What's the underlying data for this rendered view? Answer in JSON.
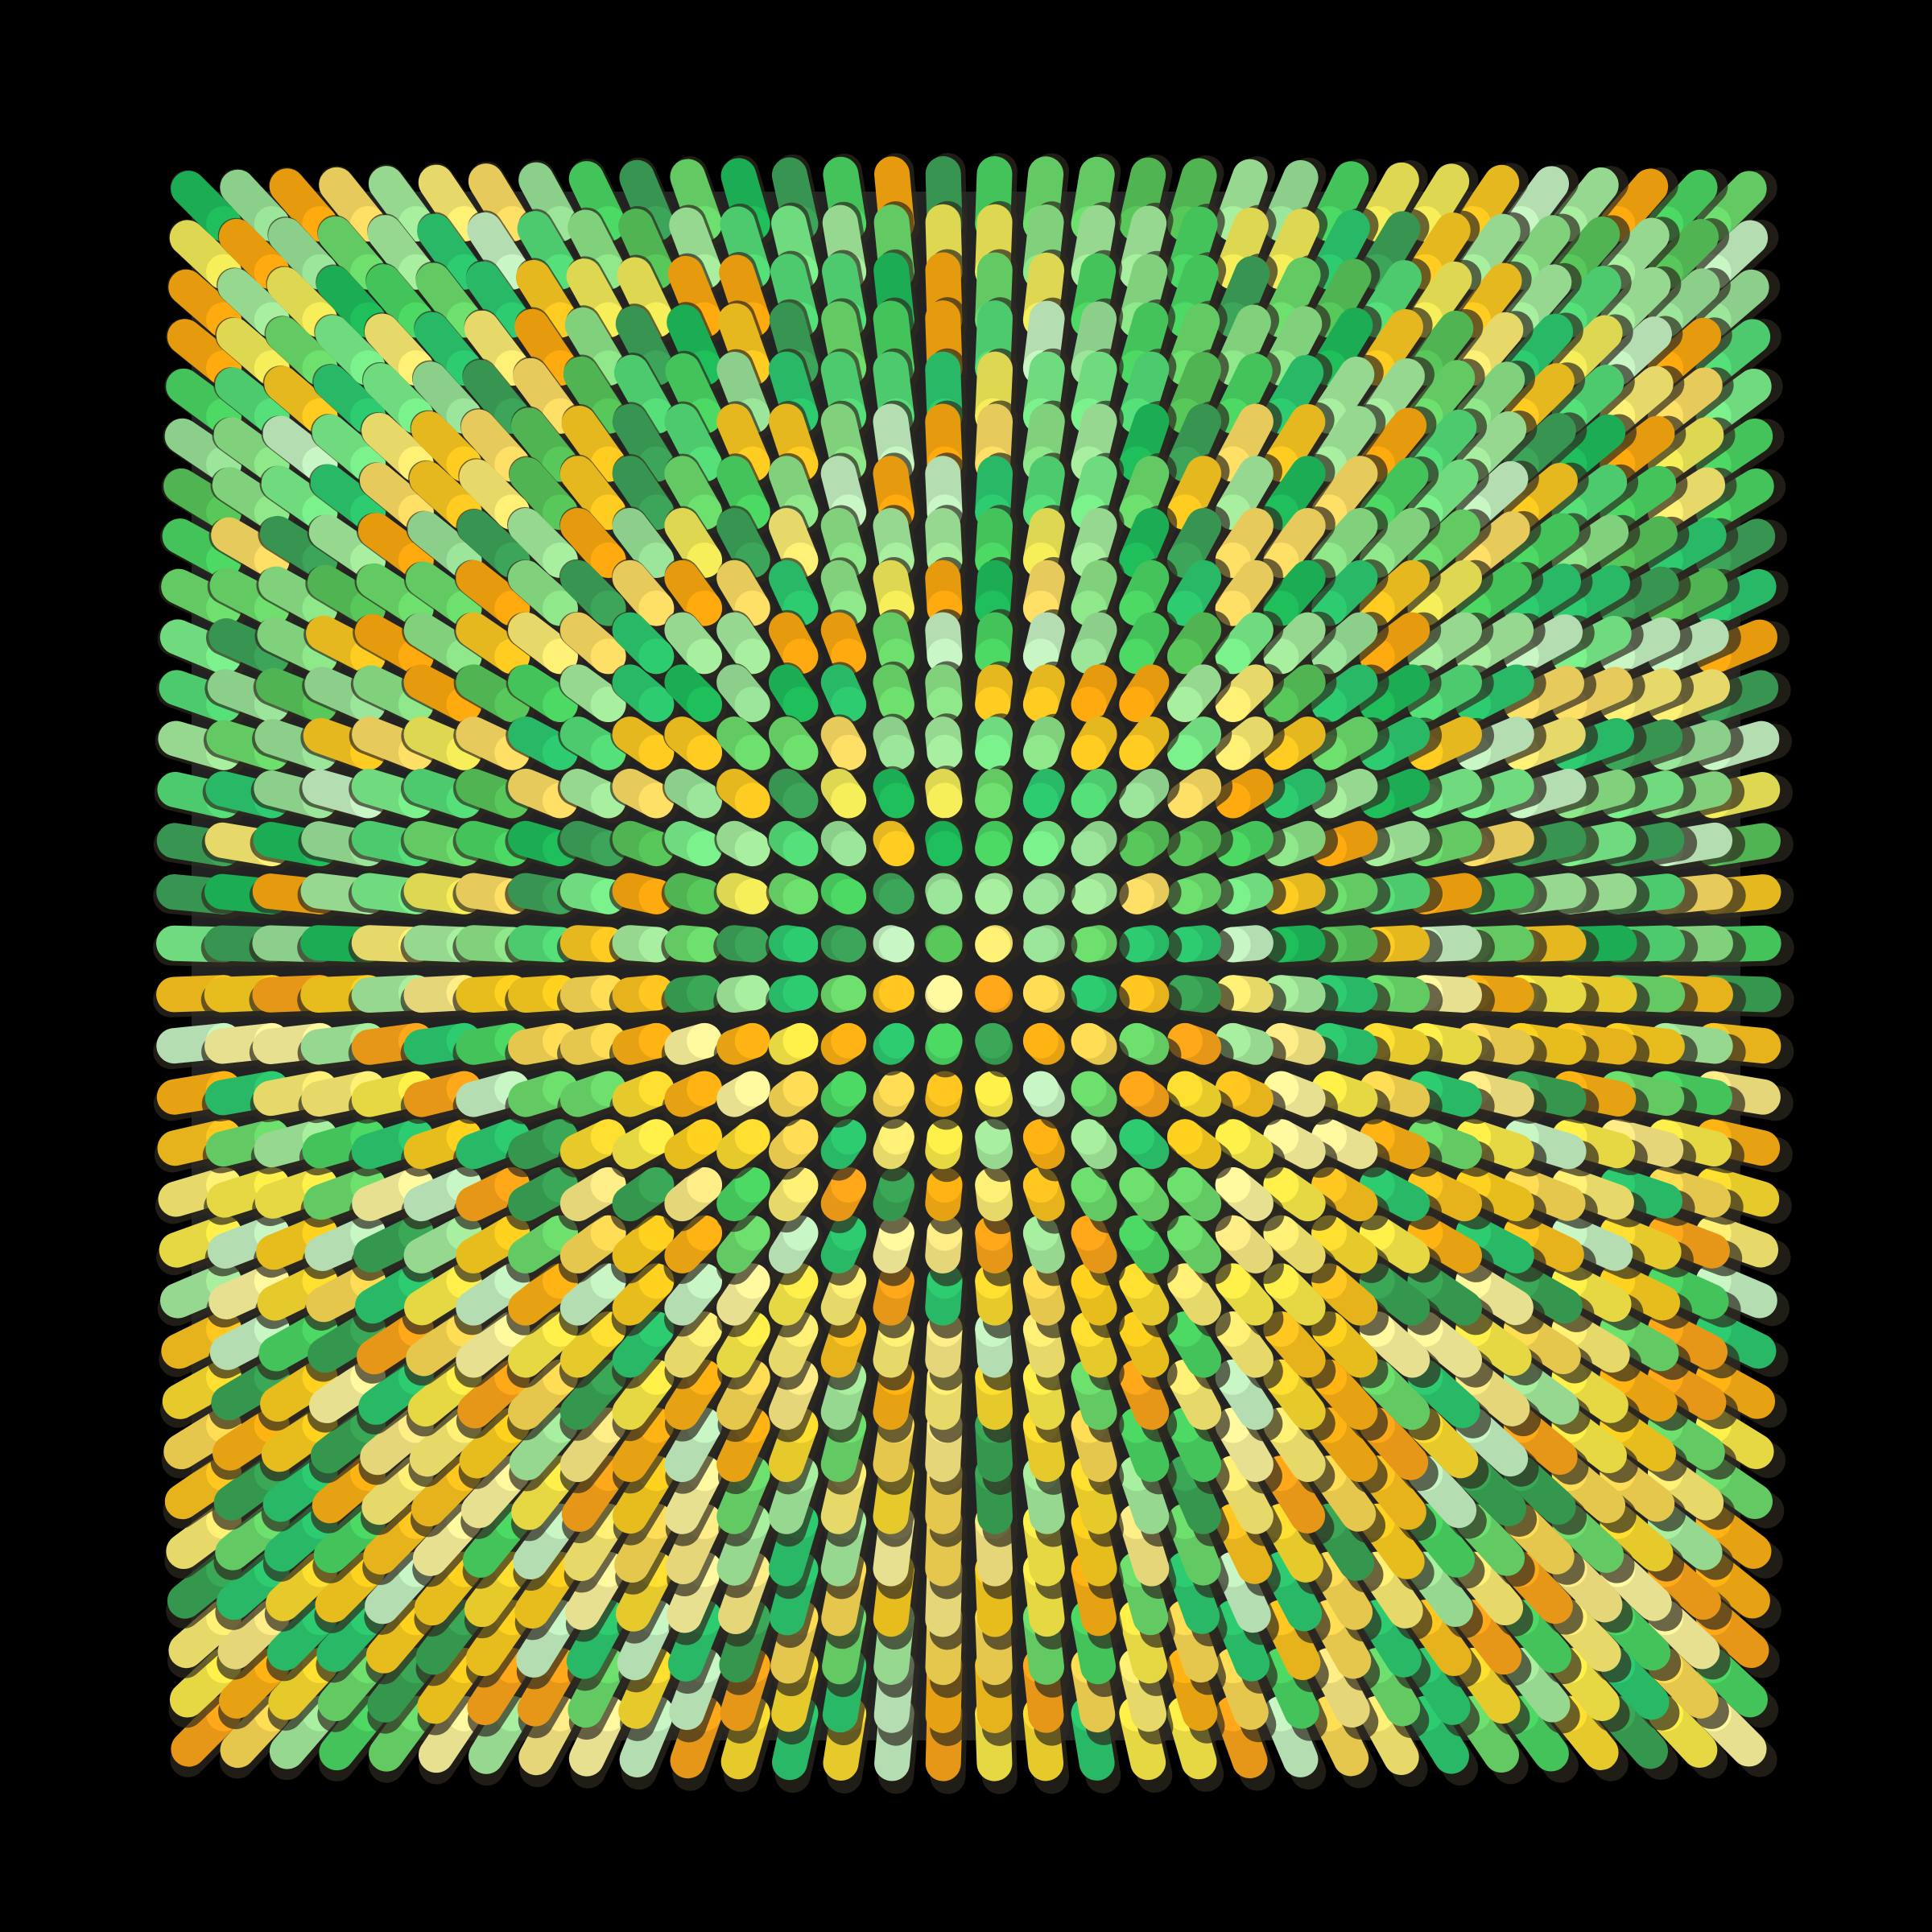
{
  "artwork": {
    "kind": "generative radial pin-grid",
    "grid_columns": 32,
    "grid_rows": 32,
    "background_color": "#000000",
    "panel_color": "#222222",
    "shadow_color": "#2e2a20",
    "top_half_palette": [
      "#1fbf5c",
      "#2ecc71",
      "#4cd964",
      "#58c85a",
      "#6ee06e",
      "#8fe88a",
      "#a8f0a0",
      "#c8f7c5",
      "#3da55a",
      "#55e07a",
      "#7cf28c",
      "#9be69a",
      "#f7ef5a",
      "#fff176",
      "#ffe066",
      "#ffcc22",
      "#ffab10"
    ],
    "bottom_half_palette": [
      "#ffe030",
      "#fff04a",
      "#ffd21f",
      "#ffc720",
      "#ffb414",
      "#ffa81a",
      "#fff176",
      "#ffee88",
      "#ffdd55",
      "#fff9a0",
      "#2ecc71",
      "#4cd964",
      "#6ee06e",
      "#a8f0a0",
      "#c8f7c5",
      "#3aa856"
    ]
  }
}
